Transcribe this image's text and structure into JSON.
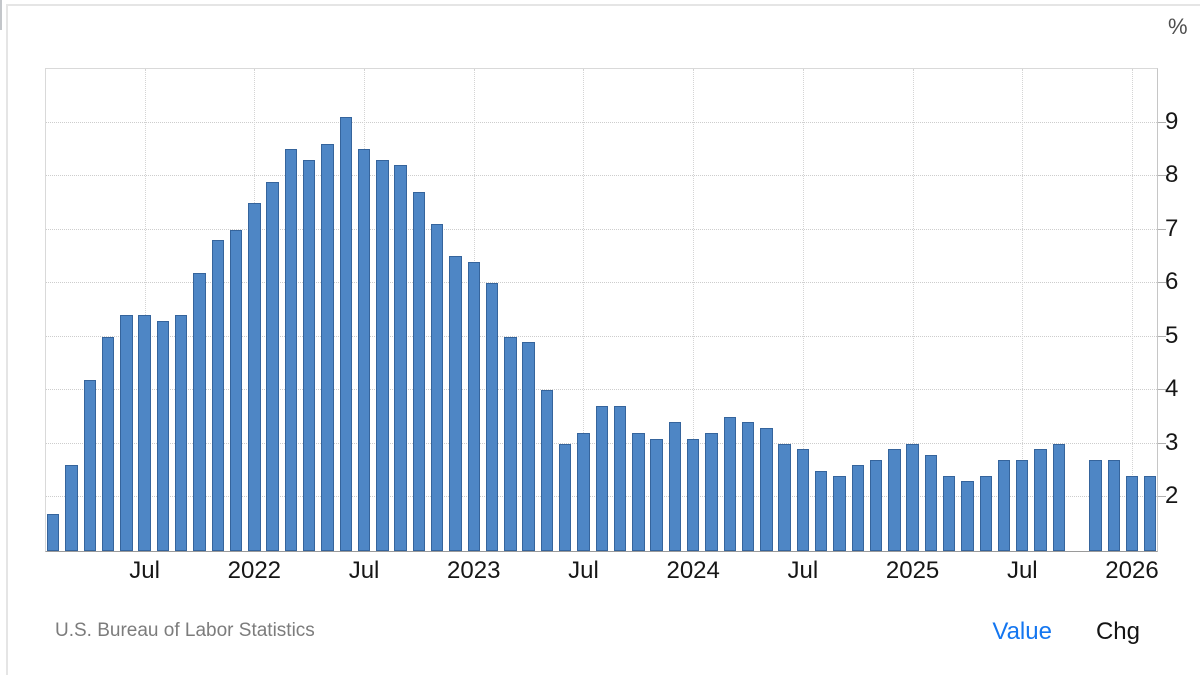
{
  "footer": {
    "source": "U.S. Bureau of Labor Statistics",
    "value_label": "Value",
    "chg_label": "Chg"
  },
  "colors": {
    "bar_fill": "#4e86c5",
    "bar_border": "#35649c",
    "value_link_blue": "#1476f0"
  },
  "chart_data": {
    "type": "bar",
    "title": "",
    "unit_label": "%",
    "x": [
      "Feb 2021",
      "Mar 2021",
      "Apr 2021",
      "May 2021",
      "Jun 2021",
      "Jul 2021",
      "Aug 2021",
      "Sep 2021",
      "Oct 2021",
      "Nov 2021",
      "Dec 2021",
      "Jan 2022",
      "Feb 2022",
      "Mar 2022",
      "Apr 2022",
      "May 2022",
      "Jun 2022",
      "Jul 2022",
      "Aug 2022",
      "Sep 2022",
      "Oct 2022",
      "Nov 2022",
      "Dec 2022",
      "Jan 2023",
      "Feb 2023",
      "Mar 2023",
      "Apr 2023",
      "May 2023",
      "Jun 2023",
      "Jul 2023",
      "Aug 2023",
      "Sep 2023",
      "Oct 2023",
      "Nov 2023",
      "Dec 2023",
      "Jan 2024",
      "Feb 2024",
      "Mar 2024",
      "Apr 2024",
      "May 2024",
      "Jun 2024",
      "Jul 2024",
      "Aug 2024",
      "Sep 2024",
      "Oct 2024",
      "Nov 2024",
      "Dec 2024",
      "Jan 2025",
      "Feb 2025",
      "Mar 2025",
      "Apr 2025",
      "May 2025",
      "Jun 2025",
      "Jul 2025",
      "Aug 2025",
      "Sep 2025",
      "Oct 2025",
      "Nov 2025",
      "Dec 2025",
      "Jan 2026",
      "Feb 2026"
    ],
    "values": [
      1.7,
      2.6,
      4.2,
      5.0,
      5.4,
      5.4,
      5.3,
      5.4,
      6.2,
      6.8,
      7.0,
      7.5,
      7.9,
      8.5,
      8.3,
      8.6,
      9.1,
      8.5,
      8.3,
      8.2,
      7.7,
      7.1,
      6.5,
      6.4,
      6.0,
      5.0,
      4.9,
      4.0,
      3.0,
      3.2,
      3.7,
      3.7,
      3.2,
      3.1,
      3.4,
      3.1,
      3.2,
      3.5,
      3.4,
      3.3,
      3.0,
      2.9,
      2.5,
      2.4,
      2.6,
      2.7,
      2.9,
      3.0,
      2.8,
      2.4,
      2.3,
      2.4,
      2.7,
      2.7,
      2.9,
      3.0,
      null,
      2.7,
      2.7,
      2.4,
      2.4
    ],
    "x_tick_labels": [
      {
        "index": 5,
        "label": "Jul"
      },
      {
        "index": 11,
        "label": "2022"
      },
      {
        "index": 17,
        "label": "Jul"
      },
      {
        "index": 23,
        "label": "2023"
      },
      {
        "index": 29,
        "label": "Jul"
      },
      {
        "index": 35,
        "label": "2024"
      },
      {
        "index": 41,
        "label": "Jul"
      },
      {
        "index": 47,
        "label": "2025"
      },
      {
        "index": 53,
        "label": "Jul"
      },
      {
        "index": 59,
        "label": "2026"
      }
    ],
    "y_ticks": [
      2,
      3,
      4,
      5,
      6,
      7,
      8,
      9
    ],
    "ylim": [
      1,
      10
    ],
    "grid": true,
    "legend": "none"
  }
}
